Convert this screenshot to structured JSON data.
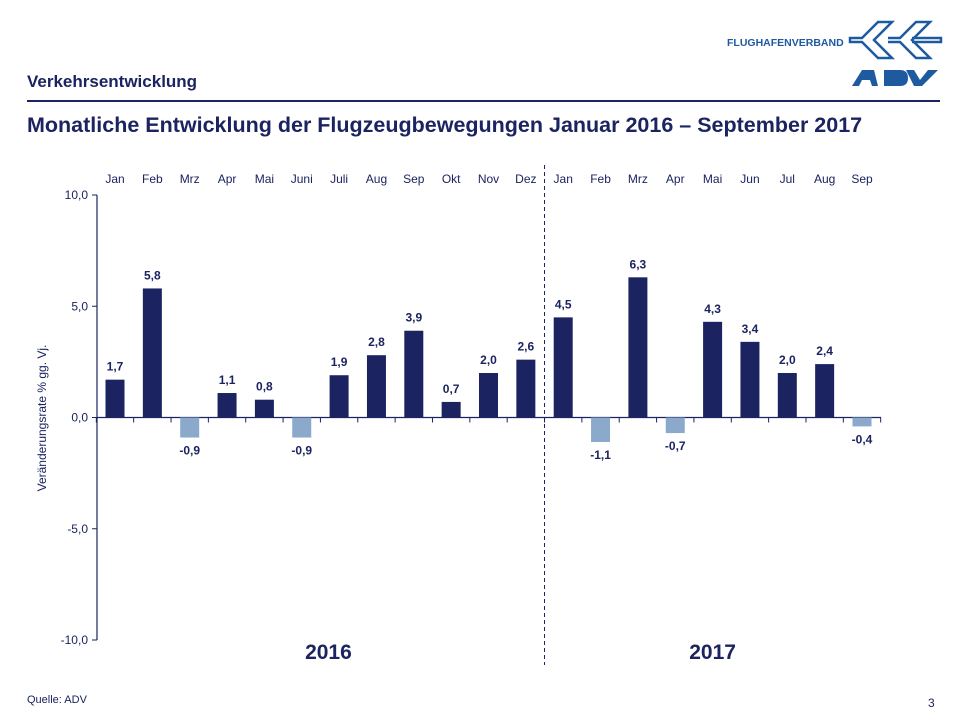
{
  "header": {
    "section": "Verkehrsentwicklung",
    "title": "Monatliche Entwicklung der Flugzeugbewegungen Januar 2016 – September 2017",
    "logo_text": "FLUGHAFENVERBAND",
    "logo_mark": "ADV"
  },
  "footer": {
    "source": "Quelle: ADV",
    "page": "3"
  },
  "colors": {
    "primary": "#1b2360",
    "positive_bar": "#1b2360",
    "negative_bar": "#8aa9cb",
    "logo": "#1e5aa0"
  },
  "chart_data": {
    "type": "bar",
    "ylabel": "Veränderungsrate % gg. Vj.",
    "ylim": [
      -10,
      10
    ],
    "yticks": [
      "10,0",
      "5,0",
      "0,0",
      "-5,0",
      "-10,0"
    ],
    "ytick_values": [
      10,
      5,
      0,
      -5,
      -10
    ],
    "categories": [
      "Jan",
      "Feb",
      "Mrz",
      "Apr",
      "Mai",
      "Juni",
      "Juli",
      "Aug",
      "Sep",
      "Okt",
      "Nov",
      "Dez",
      "Jan",
      "Feb",
      "Mrz",
      "Apr",
      "Mai",
      "Jun",
      "Jul",
      "Aug",
      "Sep"
    ],
    "values": [
      1.7,
      5.8,
      -0.9,
      1.1,
      0.8,
      -0.9,
      1.9,
      2.8,
      3.9,
      0.7,
      2.0,
      2.6,
      4.5,
      -1.1,
      6.3,
      -0.7,
      4.3,
      3.4,
      2.0,
      2.4,
      -0.4
    ],
    "value_labels": [
      "1,7",
      "5,8",
      "-0,9",
      "1,1",
      "0,8",
      "-0,9",
      "1,9",
      "2,8",
      "3,9",
      "0,7",
      "2,0",
      "2,6",
      "4,5",
      "-1,1",
      "6,3",
      "-0,7",
      "4,3",
      "3,4",
      "2,0",
      "2,4",
      "-0,4"
    ],
    "groups": [
      {
        "label": "2016",
        "count": 12
      },
      {
        "label": "2017",
        "count": 9
      }
    ],
    "grid": false
  }
}
